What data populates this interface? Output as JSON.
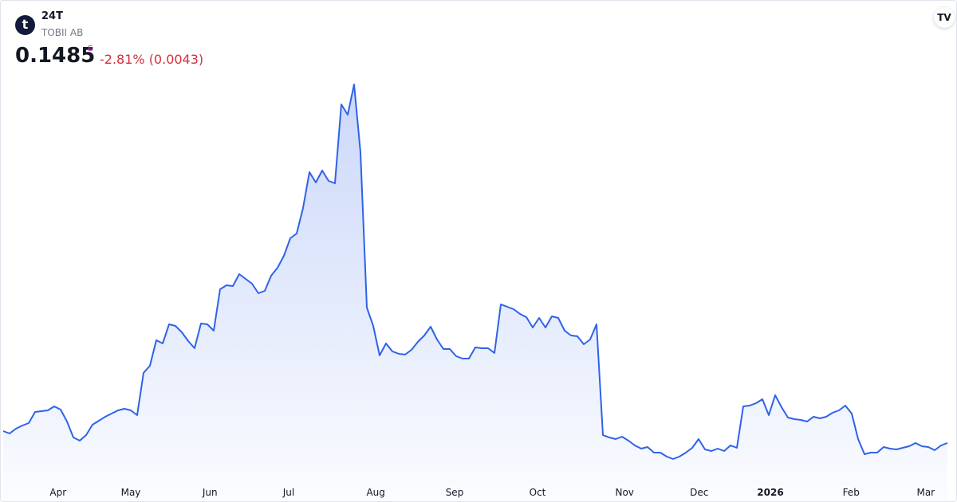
{
  "header": {
    "logo_letter": "t",
    "symbol": "24T",
    "name": "TOBII AB",
    "price": "0.1485",
    "price_flag": "E",
    "change": "-2.81% (0.0043)"
  },
  "chart_data": {
    "type": "area",
    "color": "#2f62e8",
    "values": [
      0.1635,
      0.1605,
      0.1665,
      0.1705,
      0.1735,
      0.1875,
      0.1885,
      0.1895,
      0.1945,
      0.1905,
      0.1755,
      0.1555,
      0.1515,
      0.1585,
      0.1715,
      0.1765,
      0.1815,
      0.1855,
      0.1895,
      0.1915,
      0.1895,
      0.1835,
      0.2365,
      0.2455,
      0.2775,
      0.2735,
      0.2975,
      0.2955,
      0.2875,
      0.2765,
      0.2675,
      0.2985,
      0.2975,
      0.2895,
      0.3415,
      0.3465,
      0.3455,
      0.3605,
      0.3545,
      0.3485,
      0.3365,
      0.3395,
      0.3585,
      0.3685,
      0.3835,
      0.4055,
      0.4115,
      0.4435,
      0.4885,
      0.4755,
      0.4905,
      0.4775,
      0.4745,
      0.5735,
      0.5605,
      0.5985,
      0.5135,
      0.3185,
      0.2955,
      0.2585,
      0.2735,
      0.2635,
      0.2605,
      0.2595,
      0.2655,
      0.2755,
      0.2835,
      0.2945,
      0.2785,
      0.2665,
      0.2665,
      0.2575,
      0.2545,
      0.2545,
      0.2685,
      0.2675,
      0.2675,
      0.2615,
      0.3225,
      0.3195,
      0.3165,
      0.3105,
      0.3065,
      0.2935,
      0.3055,
      0.2935,
      0.3075,
      0.3055,
      0.2895,
      0.2835,
      0.2825,
      0.2725,
      0.2785,
      0.2975,
      0.1585,
      0.1555,
      0.1535,
      0.1565,
      0.1515,
      0.1455,
      0.1415,
      0.1435,
      0.1365,
      0.1365,
      0.1315,
      0.1285,
      0.1315,
      0.1365,
      0.1425,
      0.1535,
      0.1405,
      0.1385,
      0.1415,
      0.1385,
      0.1455,
      0.1425,
      0.1945,
      0.1955,
      0.1985,
      0.2035,
      0.1835,
      0.2085,
      0.1935,
      0.1805,
      0.1785,
      0.1775,
      0.1755,
      0.1815,
      0.1795,
      0.1815,
      0.1865,
      0.1895,
      0.1955,
      0.1855,
      0.1535,
      0.1345,
      0.1365,
      0.1365,
      0.1435,
      0.1415,
      0.1405,
      0.1425,
      0.1445,
      0.1485,
      0.1445,
      0.1435,
      0.1395,
      0.1455,
      0.1485
    ],
    "xlim": [
      0,
      148
    ],
    "xticks": [
      {
        "value": 8.6,
        "label": "Apr"
      },
      {
        "value": 20,
        "label": "May"
      },
      {
        "value": 32.4,
        "label": "Jun"
      },
      {
        "value": 44.75,
        "label": "Jul"
      },
      {
        "value": 58.4,
        "label": "Aug"
      },
      {
        "value": 70.75,
        "label": "Sep"
      },
      {
        "value": 83.75,
        "label": "Oct"
      },
      {
        "value": 97.4,
        "label": "Nov"
      },
      {
        "value": 109.1,
        "label": "Dec"
      },
      {
        "value": 120.25,
        "label": "2026"
      },
      {
        "value": 132.9,
        "label": "Feb"
      },
      {
        "value": 144.6,
        "label": "Mar"
      }
    ],
    "ylim": [
      0.1055,
      0.6035
    ]
  }
}
